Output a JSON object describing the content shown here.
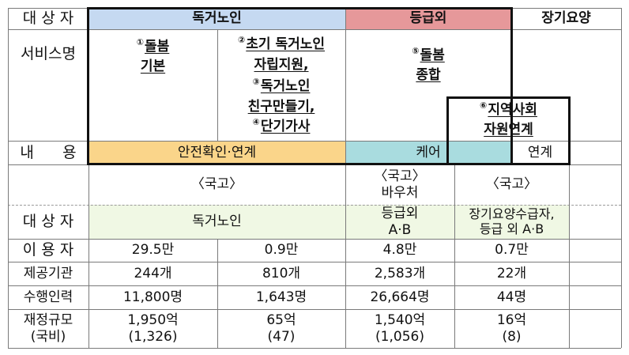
{
  "header": {
    "row_label": "대 상 자",
    "group1": "독거노인",
    "group2": "등급외",
    "group3": "장기요양"
  },
  "services": {
    "row_label": "서비스명",
    "s1_num": "①",
    "s1_line1": "돌봄",
    "s1_line2": "기본",
    "s2_num": "②",
    "s2_line1": "초기 독거노인",
    "s2_line2": "자립지원,",
    "s3_num": "③",
    "s3_line1": "독거노인",
    "s3_line2": "친구만들기,",
    "s4_num": "④",
    "s4_line1": "단기가사",
    "s5_num": "⑤",
    "s5_line1": "돌봄",
    "s5_line2": "종합",
    "s6_num": "⑥",
    "s6_line1": "지역사회",
    "s6_line2": "자원연계"
  },
  "content": {
    "row_label": "내      용",
    "c1": "안전확인·연계",
    "c2": "케어",
    "c3": "연계"
  },
  "funding": {
    "f1": "〈국고〉",
    "f2_line1": "〈국고〉",
    "f2_line2": "바우처",
    "f3": "〈국고〉"
  },
  "table": {
    "target": {
      "label": "대 상 자",
      "c1": "독거노인",
      "c2_line1": "등급외",
      "c2_line2": "A·B",
      "c3_line1": "장기요양수급자,",
      "c3_line2": "등급 외 A·B"
    },
    "users": {
      "label": "이 용 자",
      "values": [
        "29.5만",
        "0.9만",
        "4.8만",
        "0.7만"
      ]
    },
    "agencies": {
      "label": "제공기관",
      "values": [
        "244개",
        "810개",
        "2,583개",
        "22개"
      ]
    },
    "staff": {
      "label": "수행인력",
      "values": [
        "11,800명",
        "1,643명",
        "26,664명",
        "44명"
      ]
    },
    "budget": {
      "label_line1": "재정규모",
      "label_line2": "(국비)",
      "values": [
        "1,950억",
        "65억",
        "1,540억",
        "16억"
      ],
      "sub_values": [
        "(1,326)",
        "(47)",
        "(1,056)",
        "(8)"
      ]
    }
  },
  "colors": {
    "blue": "#c5d9f1",
    "pink": "#e6989a",
    "yellow": "#fad58a",
    "teal": "#a9dcdf",
    "light_green": "#f0f8e4"
  }
}
